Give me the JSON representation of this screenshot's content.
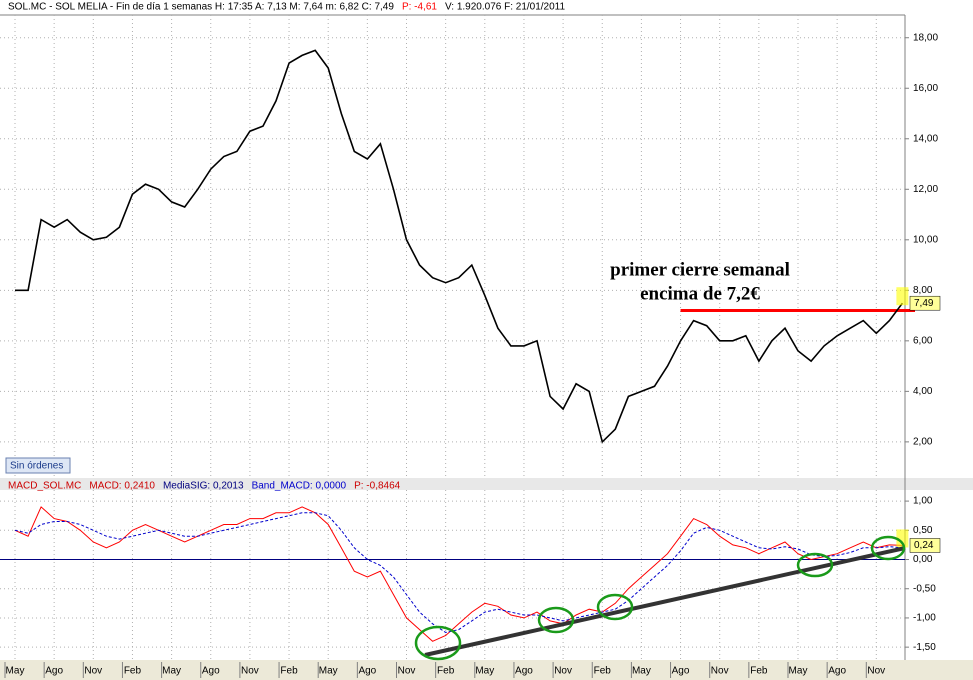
{
  "chart_data": [
    {
      "type": "line",
      "title_parts": [
        {
          "text": "SOL.MC - SOL MELIA - Fin de día 1 semanas  H: 17:35  A: 7,13  M: 7,64  m: 6,82  C: 7,49",
          "color": "#000000"
        },
        {
          "text": "P: -4,61",
          "color": "#ff0000"
        },
        {
          "text": "V: 1.920.076  F: 21/01/2011",
          "color": "#000000"
        }
      ],
      "series": [
        {
          "color": "#000000",
          "last_label": "7,49",
          "values": [
            8.0,
            8.0,
            10.8,
            10.5,
            10.8,
            10.3,
            10.0,
            10.1,
            10.5,
            11.8,
            12.2,
            12.0,
            11.5,
            11.3,
            12.0,
            12.8,
            13.3,
            13.5,
            14.3,
            14.5,
            15.5,
            17.0,
            17.3,
            17.5,
            16.8,
            15.0,
            13.5,
            13.2,
            13.8,
            12.0,
            10.0,
            9.0,
            8.5,
            8.3,
            8.5,
            9.0,
            7.8,
            6.5,
            5.8,
            5.8,
            6.0,
            3.8,
            3.3,
            4.3,
            4.0,
            2.0,
            2.5,
            3.8,
            4.0,
            4.2,
            5.0,
            6.0,
            6.8,
            6.6,
            6.0,
            6.0,
            6.2,
            5.2,
            6.0,
            6.5,
            5.6,
            5.2,
            5.8,
            6.2,
            6.5,
            6.8,
            6.3,
            6.8,
            7.49
          ]
        }
      ],
      "ylim": [
        0.57,
        18.9
      ],
      "yticks": [
        {
          "value": 2,
          "label": "2,00"
        },
        {
          "value": 4,
          "label": "4,00"
        },
        {
          "value": 6,
          "label": "6,00"
        },
        {
          "value": 8,
          "label": "8,00"
        },
        {
          "value": 10,
          "label": "10,00"
        },
        {
          "value": 12,
          "label": "12,00"
        },
        {
          "value": 14,
          "label": "14,00"
        },
        {
          "value": 16,
          "label": "16,00"
        },
        {
          "value": 18,
          "label": "18,00"
        }
      ],
      "grid": true,
      "reference_line": {
        "value": 7.2,
        "color": "#ff0000"
      },
      "annotation": [
        "primer cierre semanal",
        "encima de 7,2€"
      ],
      "badge": "Sin órdenes"
    },
    {
      "type": "line",
      "title_parts": [
        {
          "text": "MACD_SOL.MC",
          "color": "#cc0000"
        },
        {
          "text": "MACD: 0,2410",
          "color": "#cc0000"
        },
        {
          "text": "MediaSIG: 0,2013",
          "color": "#000080"
        },
        {
          "text": "Band_MACD: 0,0000",
          "color": "#0000cc"
        },
        {
          "text": "P: -0,8464",
          "color": "#cc0000"
        }
      ],
      "categories": [
        "May",
        null,
        null,
        "Ago",
        null,
        null,
        "Nov",
        null,
        null,
        "Feb",
        null,
        null,
        "May",
        null,
        null,
        "Ago",
        null,
        null,
        "Nov",
        null,
        null,
        "Feb",
        null,
        null,
        "May",
        null,
        null,
        "Ago",
        null,
        null,
        "Nov",
        null,
        null,
        "Feb",
        null,
        null,
        "May",
        null,
        null,
        "Ago",
        null,
        null,
        "Nov",
        null,
        null,
        "Feb",
        null,
        null,
        "May",
        null,
        null,
        "Ago",
        null,
        null,
        "Nov",
        null,
        null,
        "Feb",
        null,
        null,
        "May",
        null,
        null,
        "Ago",
        null,
        null,
        "Nov",
        null,
        null
      ],
      "series": [
        {
          "color": "#ff0000",
          "dash": false,
          "last_label": "0,24",
          "values": [
            0.5,
            0.4,
            0.9,
            0.7,
            0.65,
            0.5,
            0.3,
            0.2,
            0.3,
            0.5,
            0.6,
            0.5,
            0.4,
            0.3,
            0.4,
            0.5,
            0.6,
            0.6,
            0.7,
            0.7,
            0.8,
            0.8,
            0.9,
            0.8,
            0.6,
            0.2,
            -0.2,
            -0.3,
            -0.2,
            -0.6,
            -1.0,
            -1.2,
            -1.4,
            -1.3,
            -1.1,
            -0.9,
            -0.75,
            -0.8,
            -0.95,
            -1.0,
            -0.9,
            -1.05,
            -1.1,
            -0.95,
            -0.85,
            -0.9,
            -0.75,
            -0.5,
            -0.3,
            -0.1,
            0.1,
            0.4,
            0.7,
            0.6,
            0.4,
            0.25,
            0.2,
            0.1,
            0.2,
            0.3,
            0.1,
            0.0,
            0.05,
            0.1,
            0.2,
            0.3,
            0.2,
            0.25,
            0.241
          ]
        },
        {
          "color": "#0000cc",
          "dash": true,
          "values": [
            0.5,
            0.45,
            0.6,
            0.65,
            0.65,
            0.6,
            0.5,
            0.4,
            0.35,
            0.4,
            0.45,
            0.5,
            0.45,
            0.4,
            0.4,
            0.45,
            0.5,
            0.55,
            0.6,
            0.65,
            0.7,
            0.75,
            0.8,
            0.8,
            0.75,
            0.5,
            0.2,
            0.0,
            -0.1,
            -0.3,
            -0.6,
            -0.9,
            -1.1,
            -1.25,
            -1.2,
            -1.05,
            -0.9,
            -0.85,
            -0.9,
            -0.95,
            -0.95,
            -1.0,
            -1.05,
            -1.0,
            -0.95,
            -0.9,
            -0.85,
            -0.7,
            -0.5,
            -0.3,
            -0.1,
            0.15,
            0.45,
            0.55,
            0.5,
            0.4,
            0.3,
            0.2,
            0.18,
            0.22,
            0.18,
            0.08,
            0.05,
            0.07,
            0.12,
            0.2,
            0.2,
            0.22,
            0.2013
          ]
        }
      ],
      "ylim": [
        -1.72,
        1.19
      ],
      "yticks": [
        {
          "value": -1.5,
          "label": "-1,50"
        },
        {
          "value": -1,
          "label": "-1,00"
        },
        {
          "value": -0.5,
          "label": "-0,50"
        },
        {
          "value": 0,
          "label": "0,00"
        },
        {
          "value": 0.5,
          "label": "0,50"
        },
        {
          "value": 1,
          "label": "1,00"
        }
      ],
      "grid": true,
      "zero_line_color": "#000080"
    }
  ]
}
